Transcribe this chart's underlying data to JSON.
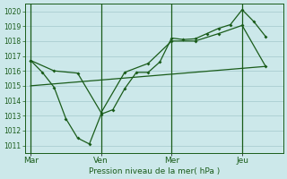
{
  "background_color": "#cce8ea",
  "grid_color": "#aacdd0",
  "line_color": "#1a5c1a",
  "text_color": "#1a5c1a",
  "xlabel": "Pression niveau de la mer( hPa )",
  "ylim": [
    1010.5,
    1020.5
  ],
  "yticks": [
    1011,
    1012,
    1013,
    1014,
    1015,
    1016,
    1017,
    1018,
    1019,
    1020
  ],
  "day_labels": [
    "Mar",
    "Ven",
    "Mer",
    "Jeu"
  ],
  "day_positions": [
    0,
    24,
    48,
    72
  ],
  "xlim": [
    -2,
    86
  ],
  "series1_x": [
    0,
    4,
    8,
    12,
    16,
    20,
    24,
    28,
    32,
    36,
    40,
    44,
    48,
    52,
    56,
    60,
    64,
    68,
    72,
    76,
    80
  ],
  "series1_y": [
    1016.7,
    1015.9,
    1014.9,
    1012.8,
    1011.5,
    1011.1,
    1013.1,
    1013.4,
    1014.8,
    1015.9,
    1015.9,
    1016.6,
    1018.2,
    1018.1,
    1018.15,
    1018.5,
    1018.85,
    1019.1,
    1020.1,
    1019.3,
    1018.3
  ],
  "series2_x": [
    0,
    8,
    16,
    24,
    32,
    40,
    48,
    56,
    64,
    72,
    80
  ],
  "series2_y": [
    1016.7,
    1016.0,
    1015.85,
    1013.2,
    1015.9,
    1016.5,
    1018.0,
    1018.0,
    1018.5,
    1019.05,
    1016.3
  ],
  "series3_x": [
    0,
    80
  ],
  "series3_y": [
    1015.0,
    1016.3
  ]
}
